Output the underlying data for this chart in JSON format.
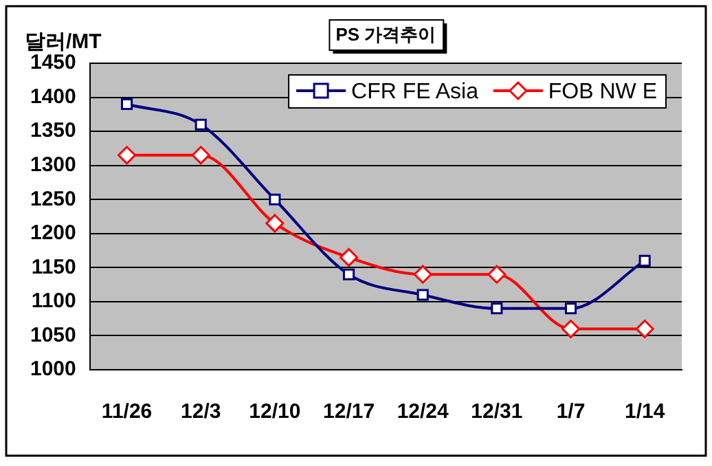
{
  "chart_data": {
    "type": "line",
    "title": "PS 가격추이",
    "ylabel": "달러/MT",
    "categories": [
      "11/26",
      "12/3",
      "12/10",
      "12/17",
      "12/24",
      "12/31",
      "1/7",
      "1/14"
    ],
    "series": [
      {
        "name": "CFR FE Asia",
        "color": "#000080",
        "marker": "square",
        "values": [
          1390,
          1360,
          1250,
          1140,
          1110,
          1090,
          1090,
          1160
        ]
      },
      {
        "name": "FOB NW E",
        "color": "#ff0000",
        "marker": "diamond",
        "values": [
          1315,
          1315,
          1215,
          1165,
          1140,
          1140,
          1060,
          1060
        ]
      }
    ],
    "ylim": [
      1000,
      1450
    ],
    "yticks": [
      1000,
      1050,
      1100,
      1150,
      1200,
      1250,
      1300,
      1350,
      1400,
      1450
    ],
    "grid": "y",
    "legend": "top right",
    "line_style": "solid"
  }
}
